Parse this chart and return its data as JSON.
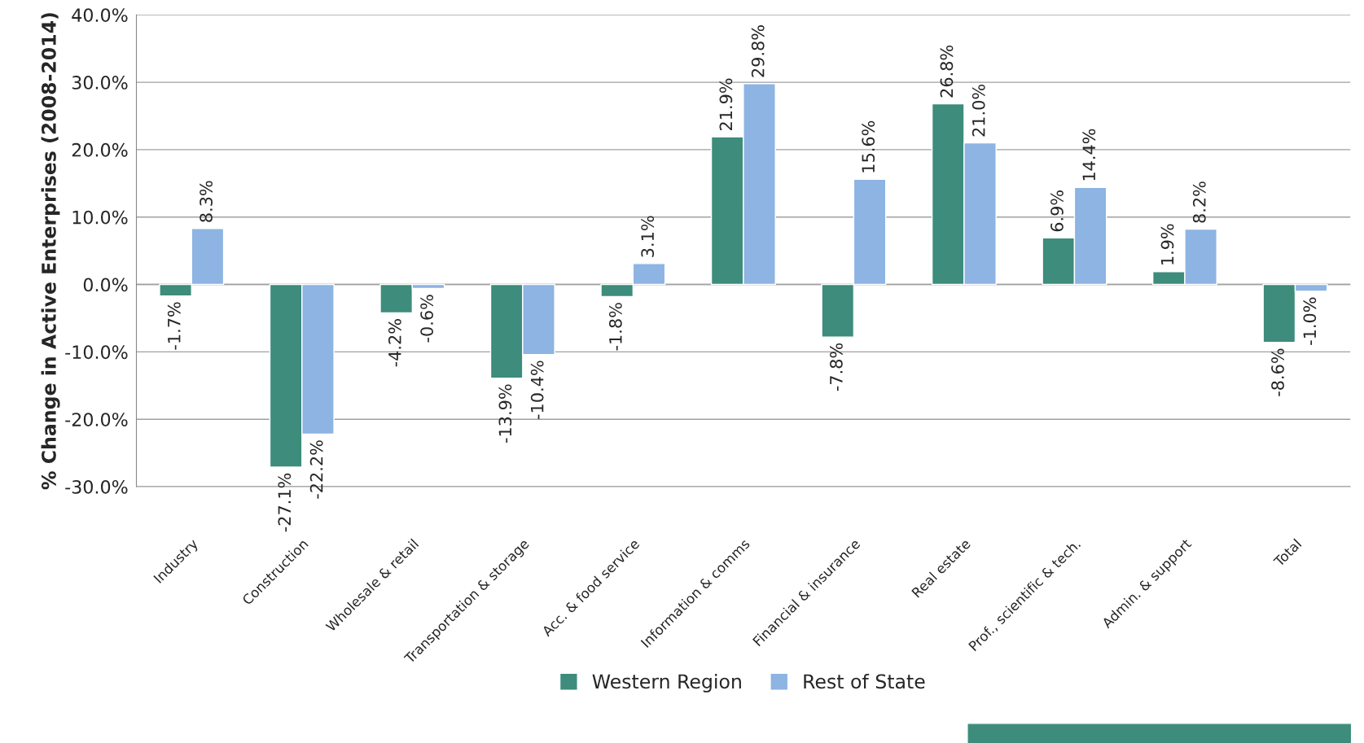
{
  "chart_data": {
    "type": "bar",
    "ylabel": "% Change in Active Enterprises (2008-2014)",
    "categories": [
      "Industry",
      "Construction",
      "Wholesale & retail",
      "Transportation & storage",
      "Acc. & food service",
      "Information & comms",
      "Financial & insurance",
      "Real estate",
      "Prof., scientific & tech.",
      "Admin. & support",
      "Total"
    ],
    "series": [
      {
        "name": "Western Region",
        "color": "#3d8c7c",
        "values": [
          -1.7,
          -27.1,
          -4.2,
          -13.9,
          -1.8,
          21.9,
          -7.8,
          26.8,
          6.9,
          1.9,
          -8.6
        ],
        "value_labels": [
          "-1.7%",
          "-27.1%",
          "-4.2%",
          "-13.9%",
          "-1.8%",
          "21.9%",
          "-7.8%",
          "26.8%",
          "6.9%",
          "1.9%",
          "-8.6%"
        ]
      },
      {
        "name": "Rest of State",
        "color": "#8db4e2",
        "values": [
          8.3,
          -22.2,
          -0.6,
          -10.4,
          3.1,
          29.8,
          15.6,
          21.0,
          14.4,
          8.2,
          -1.0
        ],
        "value_labels": [
          "8.3%",
          "-22.2%",
          "-0.6%",
          "-10.4%",
          "3.1%",
          "29.8%",
          "15.6%",
          "21.0%",
          "14.4%",
          "8.2%",
          "-1.0%"
        ]
      }
    ],
    "ylim": [
      -30,
      40
    ],
    "yticks": [
      {
        "value": -30,
        "label": "-30.0%"
      },
      {
        "value": -20,
        "label": "-20.0%"
      },
      {
        "value": -10,
        "label": "-10.0%"
      },
      {
        "value": 0,
        "label": "0.0%"
      },
      {
        "value": 10,
        "label": "10.0%"
      },
      {
        "value": 20,
        "label": "20.0%"
      },
      {
        "value": 30,
        "label": "30.0%"
      },
      {
        "value": 40,
        "label": "40.0%"
      }
    ],
    "grid": "y",
    "legend": "bottom"
  }
}
